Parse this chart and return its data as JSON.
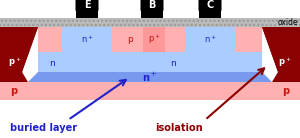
{
  "fig_width": 3.0,
  "fig_height": 1.38,
  "dpi": 100,
  "bg_pink": "#FFB0B0",
  "bg_blue_light": "#AACCFF",
  "bg_blue_mid": "#88AAFF",
  "bg_blue_buried": "#7799EE",
  "dark_red": "#8B0000",
  "oxide_gray": "#BBBBBB",
  "oxide_hatch": "#999999",
  "blue_text": "#2222CC",
  "red_text": "#CC1111",
  "dark_red_text": "#8B0000",
  "label_E": "E",
  "label_B": "B",
  "label_C": "C",
  "label_oxide": "oxide",
  "label_buried": "buried layer",
  "label_isolation": "isolation"
}
